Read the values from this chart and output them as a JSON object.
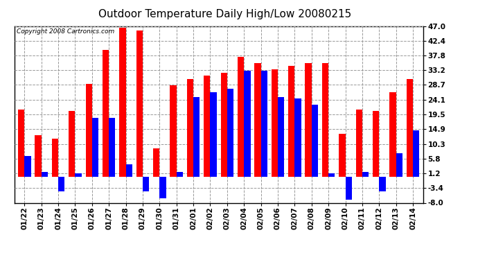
{
  "title": "Outdoor Temperature Daily High/Low 20080215",
  "copyright": "Copyright 2008 Cartronics.com",
  "dates": [
    "01/22",
    "01/23",
    "01/24",
    "01/25",
    "01/26",
    "01/27",
    "01/28",
    "01/29",
    "01/30",
    "01/31",
    "02/01",
    "02/02",
    "02/03",
    "02/04",
    "02/05",
    "02/06",
    "02/07",
    "02/08",
    "02/09",
    "02/10",
    "02/11",
    "02/12",
    "02/13",
    "02/14"
  ],
  "highs": [
    21.0,
    13.0,
    12.0,
    20.5,
    29.0,
    39.5,
    46.5,
    45.5,
    9.0,
    28.5,
    30.5,
    31.5,
    32.5,
    37.5,
    35.5,
    33.5,
    34.5,
    35.5,
    35.5,
    13.5,
    21.0,
    20.5,
    26.5,
    30.5
  ],
  "lows": [
    6.5,
    1.5,
    -4.5,
    1.2,
    18.5,
    18.5,
    4.0,
    -4.5,
    -6.5,
    1.5,
    25.0,
    26.5,
    27.5,
    33.0,
    33.0,
    25.0,
    24.5,
    22.5,
    1.2,
    -7.0,
    1.5,
    -4.5,
    7.5,
    14.5
  ],
  "high_color": "#ff0000",
  "low_color": "#0000ff",
  "background_color": "#ffffff",
  "grid_color": "#999999",
  "ylim": [
    -8.0,
    47.0
  ],
  "yticks": [
    -8.0,
    -3.4,
    1.2,
    5.8,
    10.3,
    14.9,
    19.5,
    24.1,
    28.7,
    33.2,
    37.8,
    42.4,
    47.0
  ],
  "bar_width": 0.38,
  "title_fontsize": 11,
  "copyright_fontsize": 6.5,
  "tick_fontsize": 7.5
}
